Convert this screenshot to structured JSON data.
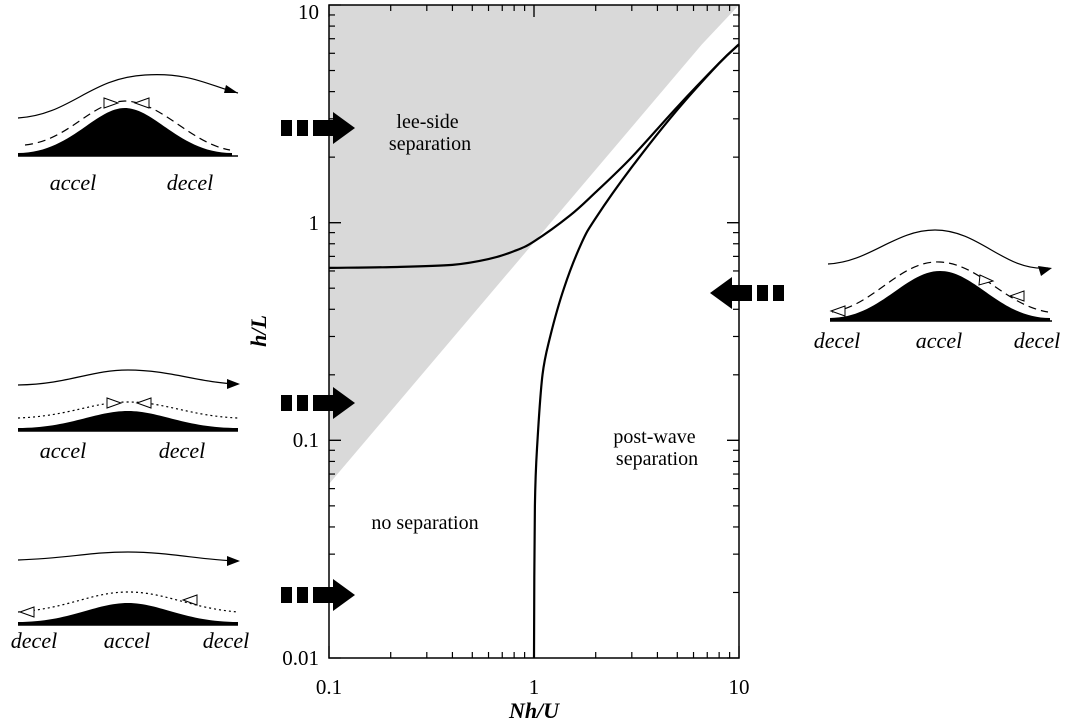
{
  "chart_data": {
    "type": "line",
    "xlabel": "Nh/U",
    "ylabel": "h/L",
    "xscale": "log",
    "yscale": "log",
    "xlim": [
      0.1,
      10
    ],
    "ylim": [
      0.01,
      10
    ],
    "x_ticks": [
      "0.1",
      "1",
      "10"
    ],
    "y_ticks": [
      "0.01",
      "0.1",
      "1",
      "10"
    ],
    "grid": false,
    "shaded_region": {
      "name": "lee-side separation",
      "color": "#d9d9d9",
      "boundary": [
        [
          0.1,
          0.063
        ],
        [
          6.6,
          6.6
        ],
        [
          10,
          10
        ],
        [
          0.1,
          10
        ]
      ]
    },
    "series": [
      {
        "curve": "upper",
        "points": [
          [
            0.1,
            0.62
          ],
          [
            0.2,
            0.625
          ],
          [
            0.4,
            0.64
          ],
          [
            0.6,
            0.68
          ],
          [
            0.8,
            0.74
          ],
          [
            1.0,
            0.82
          ],
          [
            1.5,
            1.08
          ],
          [
            2.0,
            1.38
          ],
          [
            3.0,
            2.0
          ],
          [
            5.0,
            3.4
          ],
          [
            8.0,
            5.4
          ],
          [
            10,
            6.6
          ]
        ]
      },
      {
        "curve": "lower",
        "points": [
          [
            1.0,
            0.01
          ],
          [
            1.01,
            0.05
          ],
          [
            1.04,
            0.1
          ],
          [
            1.1,
            0.2
          ],
          [
            1.2,
            0.3
          ],
          [
            1.4,
            0.5
          ],
          [
            1.7,
            0.8
          ],
          [
            2.0,
            1.05
          ],
          [
            3.0,
            1.8
          ],
          [
            5.0,
            3.3
          ],
          [
            8.0,
            5.4
          ],
          [
            10,
            6.6
          ]
        ]
      }
    ],
    "annotations": [
      {
        "text_lines": [
          "lee-side",
          "separation"
        ],
        "x": 0.28,
        "y": 2.8
      },
      {
        "text_lines": [
          "post-wave",
          "separation"
        ],
        "x": 3.5,
        "y": 0.12
      },
      {
        "text_lines": [
          "no separation"
        ],
        "x": 0.2,
        "y": 0.04
      }
    ]
  },
  "flow_schematics": [
    {
      "id": "lee-side",
      "labels": [
        "accel",
        "decel"
      ],
      "arrow_y": 2.8
    },
    {
      "id": "no-separation-mid",
      "labels": [
        "accel",
        "decel"
      ],
      "arrow_y": 0.16
    },
    {
      "id": "no-separation-low",
      "labels": [
        "decel",
        "accel",
        "decel"
      ],
      "arrow_y": 0.019
    },
    {
      "id": "post-wave",
      "labels": [
        "decel",
        "accel",
        "decel"
      ],
      "arrow_y": 0.45
    }
  ]
}
